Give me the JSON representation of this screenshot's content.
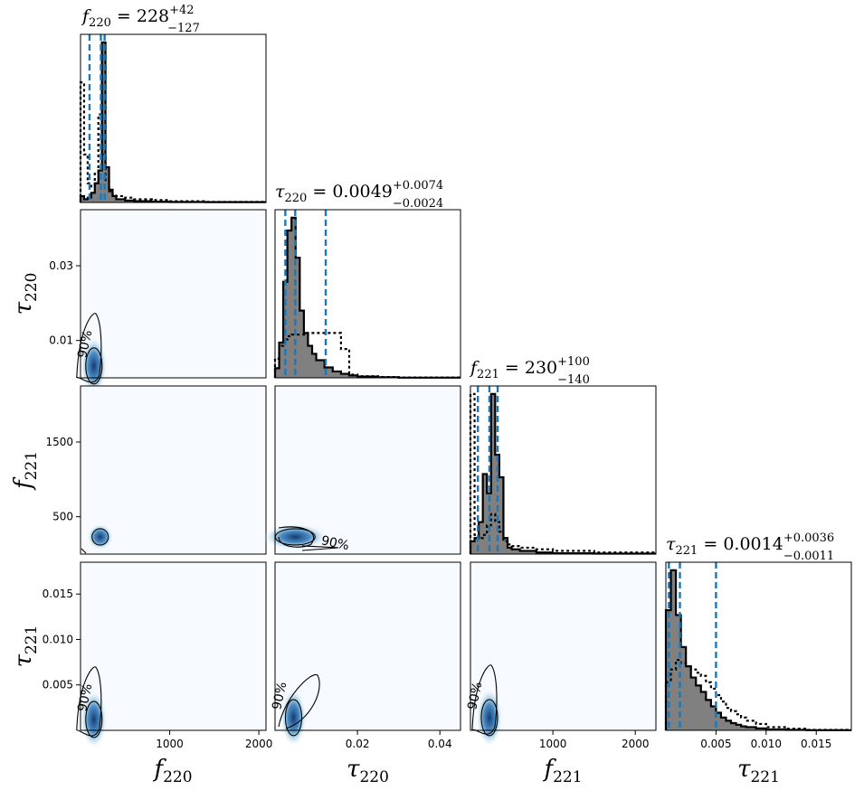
{
  "chart_data": {
    "type": "corner",
    "parameters": [
      {
        "symbol": "f",
        "sub": "220",
        "range": [
          0,
          2080
        ],
        "ticks": [
          1000,
          2000
        ],
        "tick_labels": [
          "1000",
          "2000"
        ],
        "median": "228",
        "plus": "+42",
        "minus": "−127"
      },
      {
        "symbol": "τ",
        "sub": "220",
        "range": [
          0,
          0.045
        ],
        "ticks": [
          0.02,
          0.04
        ],
        "tick_labels": [
          "0.02",
          "0.04"
        ],
        "yticks": [
          0.01,
          0.03
        ],
        "ytick_labels": [
          "0.01",
          "0.03"
        ],
        "median": "0.0049",
        "plus": "+0.0074",
        "minus": "−0.0024"
      },
      {
        "symbol": "f",
        "sub": "221",
        "range": [
          0,
          2250
        ],
        "ticks": [
          1000,
          2000
        ],
        "tick_labels": [
          "1000",
          "2000"
        ],
        "yticks": [
          500,
          1500
        ],
        "ytick_labels": [
          "500",
          "1500"
        ],
        "median": "230",
        "plus": "+100",
        "minus": "−140"
      },
      {
        "symbol": "τ",
        "sub": "221",
        "range": [
          0,
          0.0185
        ],
        "ticks": [
          0.005,
          0.01,
          0.015
        ],
        "tick_labels": [
          "0.005",
          "0.010",
          "0.015"
        ],
        "yticks": [
          0.005,
          0.01,
          0.015
        ],
        "ytick_labels": [
          "0.005",
          "0.010",
          "0.015"
        ],
        "median": "0.0014",
        "plus": "+0.0036",
        "minus": "−0.0011"
      }
    ],
    "quantile_lines": [
      [
        101,
        228,
        270
      ],
      [
        0.0025,
        0.0049,
        0.0123
      ],
      [
        90,
        230,
        330
      ],
      [
        0.0003,
        0.0014,
        0.005
      ]
    ],
    "histograms": [
      {
        "bins": [
          0,
          40,
          80,
          120,
          160,
          200,
          240,
          280,
          320,
          360,
          400,
          500,
          600,
          800,
          1000,
          1400,
          2080
        ],
        "posterior": [
          4,
          2,
          3,
          6,
          12,
          20,
          100,
          22,
          8,
          4,
          2,
          1.2,
          0.8,
          0.5,
          0.3,
          0.2
        ],
        "prior": [
          75,
          30,
          12,
          10,
          18,
          55,
          30,
          14,
          7,
          5,
          4,
          3,
          2,
          1.5,
          0.8,
          0.4
        ]
      },
      {
        "bins": [
          0,
          0.001,
          0.002,
          0.003,
          0.004,
          0.005,
          0.006,
          0.007,
          0.008,
          0.009,
          0.01,
          0.012,
          0.014,
          0.016,
          0.018,
          0.02,
          0.025,
          0.03,
          0.045
        ],
        "posterior": [
          6,
          22,
          60,
          92,
          100,
          75,
          42,
          28,
          20,
          15,
          11,
          6.5,
          4,
          2.5,
          1.5,
          0.8,
          0.4,
          0.1
        ],
        "prior": [
          12,
          20,
          24,
          26,
          27,
          27,
          27,
          27,
          28,
          28,
          28,
          28,
          28,
          18,
          2,
          1,
          0.5,
          0.2
        ]
      },
      {
        "bins": [
          0,
          50,
          100,
          150,
          200,
          250,
          300,
          350,
          400,
          450,
          500,
          600,
          800,
          1000,
          1500,
          2250
        ],
        "posterior": [
          8,
          10,
          20,
          50,
          38,
          100,
          62,
          48,
          10,
          4,
          3,
          2,
          1,
          0.5,
          0.3
        ],
        "prior": [
          100,
          12,
          10,
          12,
          18,
          25,
          20,
          14,
          8,
          6,
          5,
          4,
          3,
          2,
          1
        ]
      },
      {
        "bins": [
          0,
          0.0005,
          0.001,
          0.0015,
          0.002,
          0.0025,
          0.003,
          0.0035,
          0.004,
          0.0045,
          0.005,
          0.0055,
          0.006,
          0.0065,
          0.007,
          0.0075,
          0.008,
          0.009,
          0.01,
          0.012,
          0.014,
          0.0185
        ],
        "posterior": [
          75,
          100,
          72,
          52,
          40,
          33,
          28,
          24,
          19,
          15,
          11,
          8,
          6,
          4.5,
          3.5,
          2.5,
          2,
          1.2,
          0.6,
          0.3,
          0.1
        ],
        "prior": [
          30,
          38,
          44,
          42,
          40,
          38,
          36,
          34,
          30,
          26,
          22,
          18,
          14,
          12,
          10,
          8,
          6,
          4,
          2,
          1,
          0.3
        ]
      }
    ],
    "contours": [
      {
        "row": 1,
        "col": 0,
        "center": [
          150,
          0.0032
        ],
        "label": "90%"
      },
      {
        "row": 2,
        "col": 0,
        "center": [
          220,
          230
        ],
        "label": ""
      },
      {
        "row": 2,
        "col": 1,
        "center": [
          0.0049,
          230
        ],
        "label": "90%"
      },
      {
        "row": 3,
        "col": 0,
        "center": [
          150,
          0.0012
        ],
        "label": "90%"
      },
      {
        "row": 3,
        "col": 1,
        "center": [
          0.0045,
          0.0014
        ],
        "label": "90%"
      },
      {
        "row": 3,
        "col": 2,
        "center": [
          230,
          0.0014
        ],
        "label": "90%"
      }
    ],
    "colors": {
      "posterior_fill": "#808080",
      "line": "#000000",
      "quantile": "#1f77b4",
      "density": "#08306b"
    }
  }
}
